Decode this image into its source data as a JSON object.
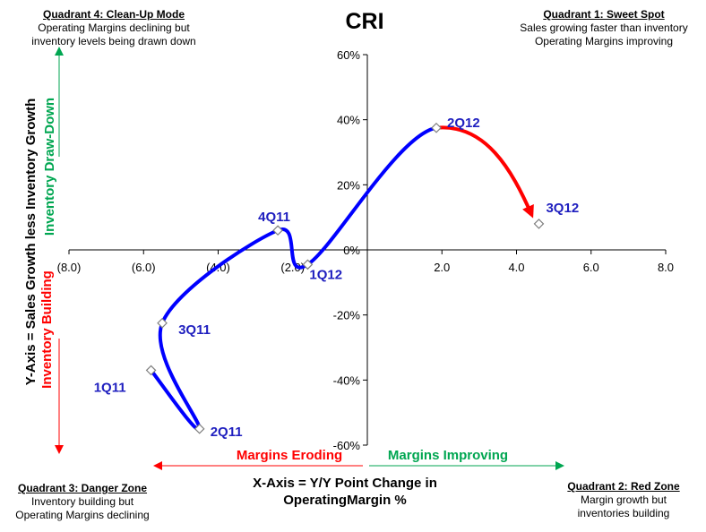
{
  "title": "CRI",
  "quadrants": {
    "q4": {
      "heading": "Quadrant 4: Clean-Up Mode",
      "line1": "Operating Margins declining but",
      "line2": "inventory levels being drawn down"
    },
    "q1": {
      "heading": "Quadrant 1: Sweet Spot",
      "line1": "Sales growing faster than  inventory",
      "line2": "Operating Margins improving"
    },
    "q3": {
      "heading": "Quadrant 3: Danger Zone",
      "line1": "Inventory building but",
      "line2": "Operating Margins declining"
    },
    "q2": {
      "heading": "Quadrant 2: Red Zone",
      "line1": "Margin growth but",
      "line2": "inventories building"
    }
  },
  "labels": {
    "xaxis_title_1": "X-Axis = Y/Y Point Change in",
    "xaxis_title_2": "OperatingMargin %",
    "yaxis_title": "Y-Axis = Sales Growth less Inventory Growth",
    "margins_eroding": "Margins Eroding",
    "margins_improving": "Margins Improving",
    "inventory_drawdown": "Inventory Draw-Down",
    "inventory_building": "Inventory Building"
  },
  "colors": {
    "line_main": "#0000ff",
    "line_recent": "#ff0000",
    "point_label": "#1f1fbf",
    "green": "#00a651",
    "red": "#ff0000"
  },
  "chart_data": {
    "type": "scatter",
    "title": "CRI",
    "xlabel": "X-Axis = Y/Y Point Change in OperatingMargin %",
    "ylabel": "Y-Axis = Sales Growth less Inventory Growth",
    "xlim": [
      -8,
      8
    ],
    "ylim": [
      -60,
      60
    ],
    "x_ticks": [
      "(8.0)",
      "(6.0)",
      "(4.0)",
      "(2.0)",
      "2.0",
      "4.0",
      "6.0",
      "8.0"
    ],
    "x_tick_values": [
      -8,
      -6,
      -4,
      -2,
      2,
      4,
      6,
      8
    ],
    "y_ticks": [
      "60%",
      "40%",
      "20%",
      "0%",
      "-20%",
      "-40%",
      "-60%"
    ],
    "y_tick_values": [
      60,
      40,
      20,
      0,
      -20,
      -40,
      -60
    ],
    "grid": false,
    "series": [
      {
        "name": "CRI",
        "points": [
          {
            "label": "1Q11",
            "x": -5.8,
            "y": -37
          },
          {
            "label": "2Q11",
            "x": -4.5,
            "y": -55
          },
          {
            "label": "3Q11",
            "x": -5.5,
            "y": -22.5
          },
          {
            "label": "4Q11",
            "x": -2.4,
            "y": 6
          },
          {
            "label": "1Q12",
            "x": -1.6,
            "y": -4.5
          },
          {
            "label": "2Q12",
            "x": 1.85,
            "y": 37.5
          },
          {
            "label": "3Q12",
            "x": 4.6,
            "y": 8
          }
        ],
        "highlight_last_segment": true
      }
    ]
  }
}
